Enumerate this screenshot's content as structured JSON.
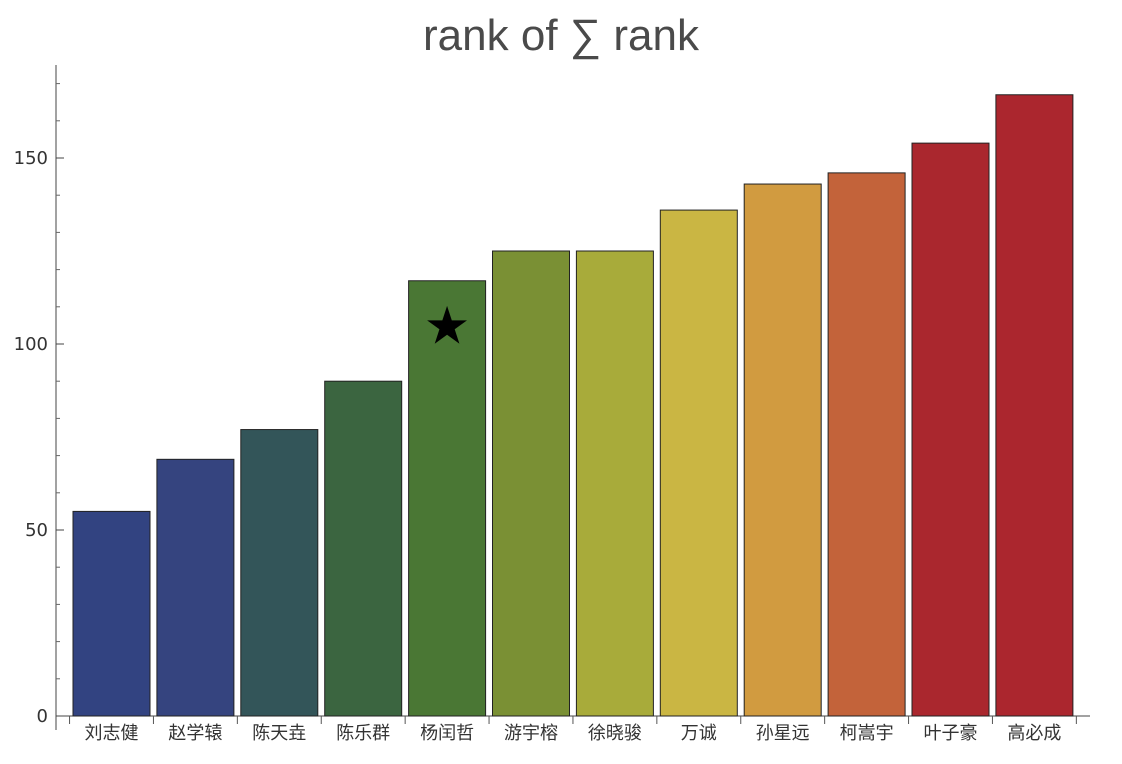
{
  "chart_data": {
    "type": "bar",
    "title": "rank of ∑ rank",
    "xlabel": "",
    "ylabel": "",
    "categories": [
      "刘志健",
      "赵学辕",
      "陈天垚",
      "陈乐群",
      "杨闰哲",
      "游宇榕",
      "徐晓骏",
      "万诚",
      "孙星远",
      "柯嵩宇",
      "叶子豪",
      "高必成"
    ],
    "values": [
      55,
      69,
      77,
      90,
      117,
      125,
      125,
      136,
      143,
      146,
      154,
      167
    ],
    "colors": [
      "#324381",
      "#35447f",
      "#335559",
      "#3b6540",
      "#4a7734",
      "#7a9034",
      "#a8ab3a",
      "#cab643",
      "#d19b40",
      "#c3633a",
      "#aa272e",
      "#ab262e"
    ],
    "ylim": [
      0,
      175
    ],
    "yticks": [
      0,
      50,
      100,
      150
    ],
    "yminor_step": 10,
    "highlight_marker": {
      "category": "杨闰哲",
      "symbol": "★",
      "value": 105
    }
  }
}
